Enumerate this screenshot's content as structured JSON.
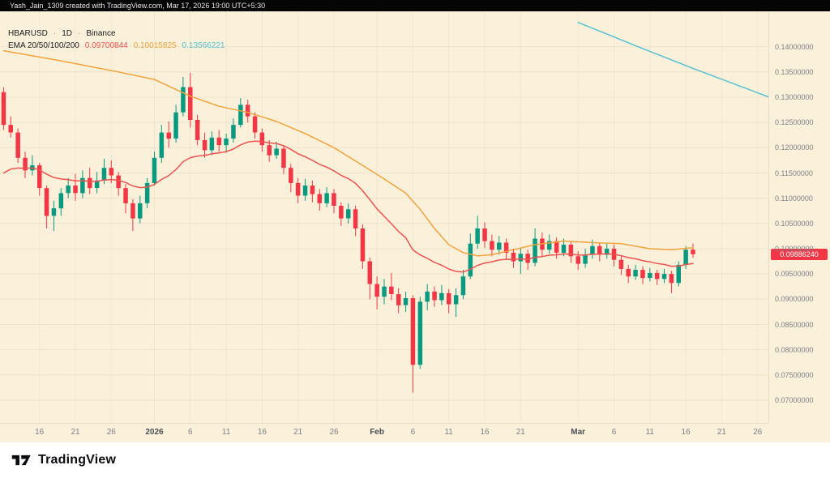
{
  "topbar": {
    "attribution": "Yash_Jain_1309 created with TradingView.com, Mar 17, 2026 19:00 UTC+5:30"
  },
  "legend": {
    "symbol": "HBARUSD",
    "interval": "1D",
    "exchange": "Binance",
    "sep": "·",
    "ema_label": "EMA 20/50/100/200",
    "ema_values": [
      {
        "value": "0.09700844"
      },
      {
        "value": "0.10015825"
      },
      {
        "value": "0.13566221"
      }
    ]
  },
  "price_axis": {
    "labels": [
      "0.14000000",
      "0.13500000",
      "0.13000000",
      "0.12500000",
      "0.12000000",
      "0.11500000",
      "0.11000000",
      "0.10500000",
      "0.10000000",
      "0.09500000",
      "0.09000000",
      "0.08500000",
      "0.08000000",
      "0.07500000",
      "0.07000000"
    ],
    "last_price": 0.0988624,
    "last_price_label": "0.09886240",
    "tag_color": "#f23645"
  },
  "time_axis": {
    "ticks": [
      {
        "index": 5,
        "label": "16"
      },
      {
        "index": 10,
        "label": "21"
      },
      {
        "index": 15,
        "label": "26"
      },
      {
        "index": 21,
        "label": "2026",
        "bold": true
      },
      {
        "index": 26,
        "label": "6"
      },
      {
        "index": 31,
        "label": "11"
      },
      {
        "index": 36,
        "label": "16"
      },
      {
        "index": 41,
        "label": "21"
      },
      {
        "index": 46,
        "label": "26"
      },
      {
        "index": 52,
        "label": "Feb",
        "bold": true
      },
      {
        "index": 57,
        "label": "6"
      },
      {
        "index": 62,
        "label": "11"
      },
      {
        "index": 67,
        "label": "16"
      },
      {
        "index": 72,
        "label": "21"
      },
      {
        "index": 80,
        "label": "Mar",
        "bold": true
      },
      {
        "index": 85,
        "label": "6"
      },
      {
        "index": 90,
        "label": "11"
      },
      {
        "index": 95,
        "label": "16"
      },
      {
        "index": 100,
        "label": "21"
      },
      {
        "index": 105,
        "label": "26"
      }
    ]
  },
  "footer": {
    "logo": "17",
    "brand": "TradingView"
  },
  "chart_data": {
    "type": "candlestick",
    "title": "HBARUSD · 1D · Binance",
    "symbol": "HBARUSD",
    "interval": "1D",
    "exchange": "Binance",
    "start_date": "2025-12-11",
    "end_date": "2026-03-17",
    "last_price": 0.0988624,
    "price_range": [
      0.0655,
      0.147
    ],
    "total_slots": 107,
    "colors": {
      "up": "#089981",
      "down": "#f23645",
      "background": "#fbf0da"
    },
    "candles": [
      [
        0.131,
        0.132,
        0.1235,
        0.1245
      ],
      [
        0.1245,
        0.1262,
        0.122,
        0.123
      ],
      [
        0.123,
        0.1238,
        0.117,
        0.118
      ],
      [
        0.118,
        0.1192,
        0.114,
        0.1155
      ],
      [
        0.1155,
        0.1185,
        0.1145,
        0.1165
      ],
      [
        0.1165,
        0.117,
        0.1105,
        0.112
      ],
      [
        0.112,
        0.1125,
        0.104,
        0.1065
      ],
      [
        0.1065,
        0.1095,
        0.1035,
        0.108
      ],
      [
        0.108,
        0.112,
        0.1065,
        0.111
      ],
      [
        0.111,
        0.114,
        0.11,
        0.1125
      ],
      [
        0.1125,
        0.1148,
        0.1095,
        0.111
      ],
      [
        0.111,
        0.1155,
        0.11,
        0.114
      ],
      [
        0.114,
        0.116,
        0.1108,
        0.112
      ],
      [
        0.112,
        0.1152,
        0.111,
        0.1135
      ],
      [
        0.1135,
        0.1178,
        0.1128,
        0.116
      ],
      [
        0.116,
        0.1175,
        0.113,
        0.1145
      ],
      [
        0.1145,
        0.1152,
        0.1105,
        0.112
      ],
      [
        0.112,
        0.1128,
        0.107,
        0.109
      ],
      [
        0.109,
        0.1098,
        0.1035,
        0.106
      ],
      [
        0.106,
        0.1105,
        0.105,
        0.109
      ],
      [
        0.109,
        0.114,
        0.108,
        0.113
      ],
      [
        0.113,
        0.1192,
        0.1125,
        0.118
      ],
      [
        0.118,
        0.1245,
        0.117,
        0.123
      ],
      [
        0.123,
        0.1252,
        0.12,
        0.1218
      ],
      [
        0.1218,
        0.1285,
        0.121,
        0.127
      ],
      [
        0.127,
        0.134,
        0.1262,
        0.132
      ],
      [
        0.132,
        0.1348,
        0.124,
        0.1255
      ],
      [
        0.1255,
        0.1265,
        0.1205,
        0.1215
      ],
      [
        0.1215,
        0.123,
        0.118,
        0.1195
      ],
      [
        0.1195,
        0.1232,
        0.1185,
        0.122
      ],
      [
        0.122,
        0.1235,
        0.1192,
        0.1205
      ],
      [
        0.1205,
        0.1228,
        0.119,
        0.1218
      ],
      [
        0.1218,
        0.1258,
        0.121,
        0.1245
      ],
      [
        0.1245,
        0.1298,
        0.124,
        0.1285
      ],
      [
        0.1285,
        0.1295,
        0.125,
        0.1262
      ],
      [
        0.1262,
        0.127,
        0.1218,
        0.123
      ],
      [
        0.123,
        0.1238,
        0.1192,
        0.1205
      ],
      [
        0.1205,
        0.1215,
        0.1172,
        0.1185
      ],
      [
        0.1185,
        0.1212,
        0.1178,
        0.1198
      ],
      [
        0.1198,
        0.1205,
        0.1148,
        0.116
      ],
      [
        0.116,
        0.1168,
        0.1112,
        0.113
      ],
      [
        0.113,
        0.114,
        0.109,
        0.1105
      ],
      [
        0.1105,
        0.1138,
        0.1095,
        0.1125
      ],
      [
        0.1125,
        0.1135,
        0.1092,
        0.1108
      ],
      [
        0.1108,
        0.1118,
        0.1075,
        0.109
      ],
      [
        0.109,
        0.1122,
        0.1082,
        0.111
      ],
      [
        0.111,
        0.1118,
        0.107,
        0.1085
      ],
      [
        0.1085,
        0.1092,
        0.1045,
        0.106
      ],
      [
        0.106,
        0.109,
        0.105,
        0.1078
      ],
      [
        0.1078,
        0.1085,
        0.1025,
        0.104
      ],
      [
        0.104,
        0.1048,
        0.096,
        0.0975
      ],
      [
        0.0975,
        0.0982,
        0.09,
        0.093
      ],
      [
        0.093,
        0.0945,
        0.088,
        0.0905
      ],
      [
        0.0905,
        0.094,
        0.089,
        0.0925
      ],
      [
        0.0925,
        0.0952,
        0.0898,
        0.091
      ],
      [
        0.091,
        0.0922,
        0.0872,
        0.0888
      ],
      [
        0.0888,
        0.0915,
        0.0875,
        0.0902
      ],
      [
        0.0902,
        0.0908,
        0.0715,
        0.077
      ],
      [
        0.077,
        0.0905,
        0.0762,
        0.0895
      ],
      [
        0.0895,
        0.093,
        0.0878,
        0.0915
      ],
      [
        0.0915,
        0.0925,
        0.0885,
        0.0898
      ],
      [
        0.0898,
        0.0928,
        0.0888,
        0.0912
      ],
      [
        0.0912,
        0.092,
        0.0872,
        0.089
      ],
      [
        0.089,
        0.0922,
        0.0865,
        0.0908
      ],
      [
        0.0908,
        0.0958,
        0.09,
        0.0945
      ],
      [
        0.0945,
        0.103,
        0.094,
        0.101
      ],
      [
        0.101,
        0.1065,
        0.1,
        0.104
      ],
      [
        0.104,
        0.1052,
        0.1002,
        0.1015
      ],
      [
        0.1015,
        0.1028,
        0.0985,
        0.0998
      ],
      [
        0.0998,
        0.1025,
        0.0988,
        0.1012
      ],
      [
        0.1012,
        0.102,
        0.0978,
        0.0992
      ],
      [
        0.0992,
        0.1,
        0.0962,
        0.0975
      ],
      [
        0.0975,
        0.1002,
        0.095,
        0.099
      ],
      [
        0.099,
        0.0998,
        0.0958,
        0.0972
      ],
      [
        0.0972,
        0.104,
        0.0965,
        0.102
      ],
      [
        0.102,
        0.1032,
        0.0985,
        0.0998
      ],
      [
        0.0998,
        0.1028,
        0.099,
        0.1015
      ],
      [
        0.1015,
        0.1022,
        0.098,
        0.0992
      ],
      [
        0.0992,
        0.102,
        0.0985,
        0.1008
      ],
      [
        0.1008,
        0.1015,
        0.0972,
        0.0985
      ],
      [
        0.0985,
        0.0995,
        0.0958,
        0.097
      ],
      [
        0.097,
        0.1,
        0.0962,
        0.0988
      ],
      [
        0.0988,
        0.1018,
        0.098,
        0.1005
      ],
      [
        0.1005,
        0.1012,
        0.0975,
        0.0988
      ],
      [
        0.0988,
        0.101,
        0.098,
        0.1
      ],
      [
        0.1,
        0.1008,
        0.0965,
        0.0978
      ],
      [
        0.0978,
        0.0985,
        0.0948,
        0.096
      ],
      [
        0.096,
        0.0968,
        0.0932,
        0.0945
      ],
      [
        0.0945,
        0.0968,
        0.0938,
        0.0958
      ],
      [
        0.0958,
        0.0965,
        0.093,
        0.0942
      ],
      [
        0.0942,
        0.0962,
        0.0935,
        0.0952
      ],
      [
        0.0952,
        0.0958,
        0.0928,
        0.094
      ],
      [
        0.094,
        0.096,
        0.0932,
        0.095
      ],
      [
        0.095,
        0.0956,
        0.0912,
        0.0932
      ],
      [
        0.0932,
        0.0975,
        0.0925,
        0.0968
      ],
      [
        0.0968,
        0.1005,
        0.096,
        0.0998
      ],
      [
        0.0998,
        0.101,
        0.0982,
        0.0989
      ]
    ],
    "emas": [
      {
        "label": "EMA 20",
        "period": 20,
        "seed": 0.114,
        "color": "#ef5350",
        "last_value": "0.09700844"
      },
      {
        "label": "EMA 50/100",
        "color": "#f2a33c",
        "last_value": "0.10015825",
        "points": [
          [
            0,
            0.1392
          ],
          [
            8,
            0.1372
          ],
          [
            16,
            0.135
          ],
          [
            21,
            0.1335
          ],
          [
            26,
            0.1302
          ],
          [
            30,
            0.1282
          ],
          [
            34,
            0.127
          ],
          [
            38,
            0.1252
          ],
          [
            42,
            0.1228
          ],
          [
            46,
            0.12
          ],
          [
            50,
            0.1165
          ],
          [
            53,
            0.1138
          ],
          [
            56,
            0.111
          ],
          [
            58,
            0.1078
          ],
          [
            60,
            0.104
          ],
          [
            62,
            0.1008
          ],
          [
            64,
            0.0992
          ],
          [
            66,
            0.0986
          ],
          [
            68,
            0.0988
          ],
          [
            71,
            0.0998
          ],
          [
            74,
            0.1008
          ],
          [
            78,
            0.1015
          ],
          [
            82,
            0.1012
          ],
          [
            86,
            0.101
          ],
          [
            90,
            0.1
          ],
          [
            93,
            0.0998
          ],
          [
            96,
            0.1002
          ]
        ]
      },
      {
        "label": "EMA 200",
        "color": "#55c1d2",
        "last_value": "0.13566221",
        "points": [
          [
            80,
            0.1448
          ],
          [
            88,
            0.1402
          ],
          [
            96,
            0.1357
          ],
          [
            107,
            0.1298
          ]
        ]
      }
    ]
  }
}
